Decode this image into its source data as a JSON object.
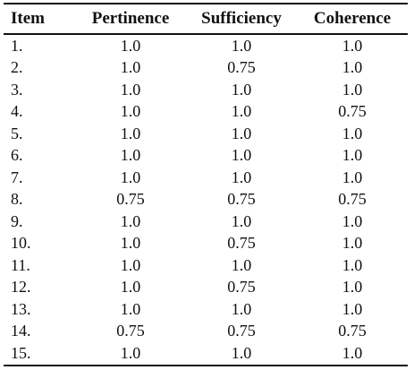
{
  "table": {
    "headers": [
      "Item",
      "Pertinence",
      "Sufficiency",
      "Coherence"
    ],
    "rows": [
      [
        "1.",
        "1.0",
        "1.0",
        "1.0"
      ],
      [
        "2.",
        "1.0",
        "0.75",
        "1.0"
      ],
      [
        "3.",
        "1.0",
        "1.0",
        "1.0"
      ],
      [
        "4.",
        "1.0",
        "1.0",
        "0.75"
      ],
      [
        "5.",
        "1.0",
        "1.0",
        "1.0"
      ],
      [
        "6.",
        "1.0",
        "1.0",
        "1.0"
      ],
      [
        "7.",
        "1.0",
        "1.0",
        "1.0"
      ],
      [
        "8.",
        "0.75",
        "0.75",
        "0.75"
      ],
      [
        "9.",
        "1.0",
        "1.0",
        "1.0"
      ],
      [
        "10.",
        "1.0",
        "0.75",
        "1.0"
      ],
      [
        "11.",
        "1.0",
        "1.0",
        "1.0"
      ],
      [
        "12.",
        "1.0",
        "0.75",
        "1.0"
      ],
      [
        "13.",
        "1.0",
        "1.0",
        "1.0"
      ],
      [
        "14.",
        "0.75",
        "0.75",
        "0.75"
      ],
      [
        "15.",
        "1.0",
        "1.0",
        "1.0"
      ]
    ]
  }
}
